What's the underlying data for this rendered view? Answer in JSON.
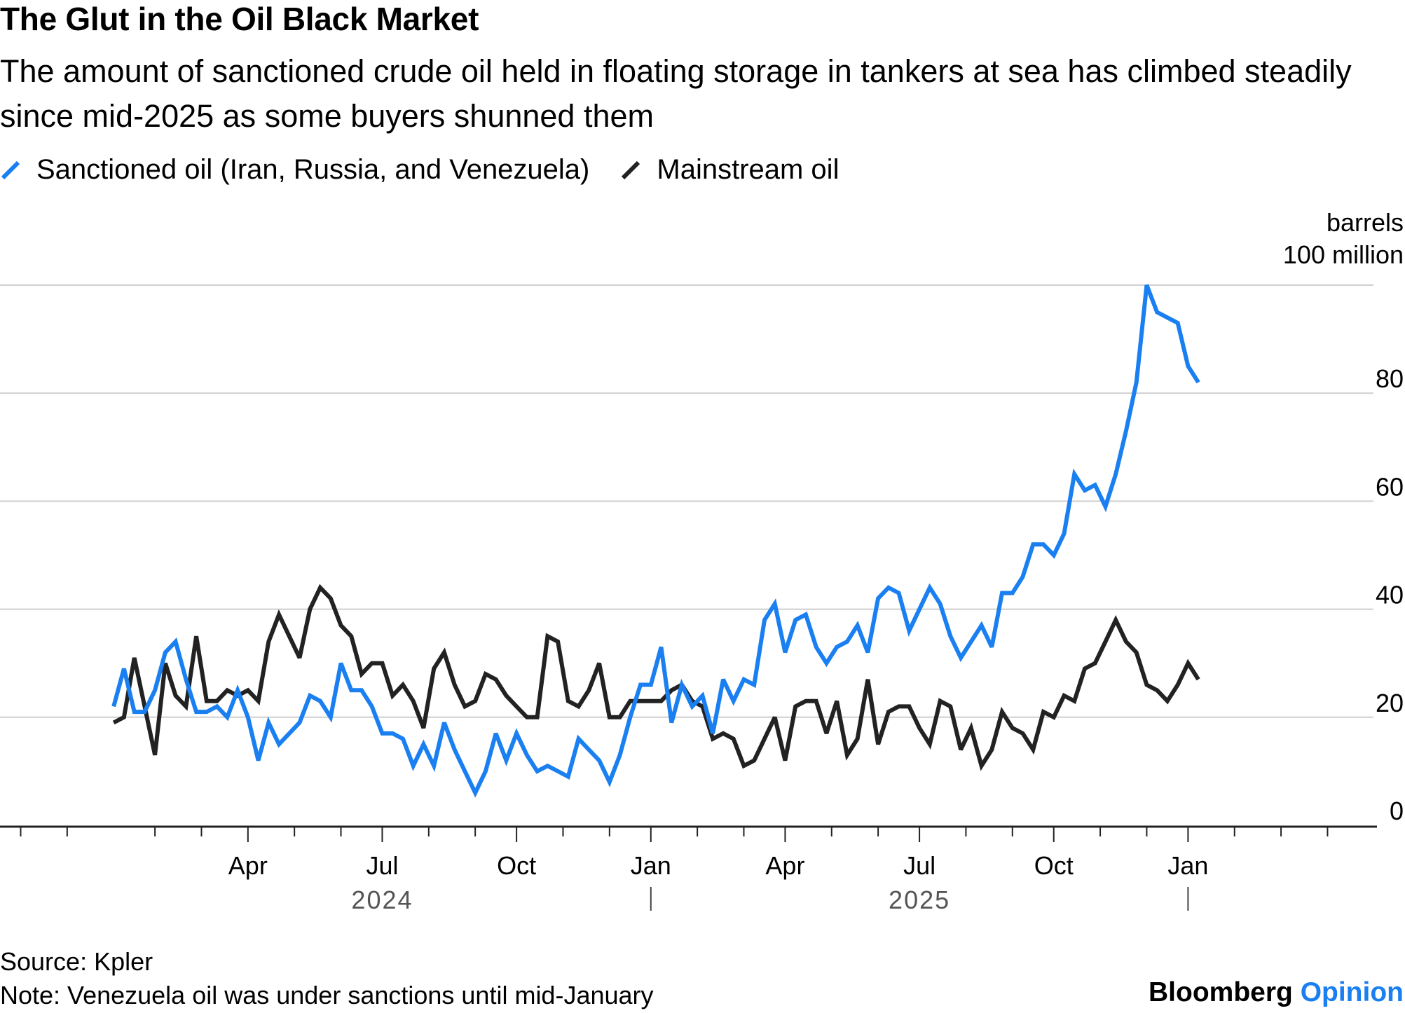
{
  "header": {
    "title": "The Glut in the Oil Black Market",
    "subtitle": "The amount of sanctioned crude oil held in floating storage in tankers at sea has climbed steadily since mid-2025 as some buyers shunned them"
  },
  "legend": [
    {
      "label": "Sanctioned oil (Iran, Russia, and Venezuela)",
      "color": "#1a7ff0"
    },
    {
      "label": "Mainstream oil",
      "color": "#222222"
    }
  ],
  "chart_data": {
    "type": "line",
    "title": "The Glut in the Oil Black Market",
    "ylabel_line1": "barrels",
    "ylabel_line2": "100 million",
    "ylim": [
      0,
      100
    ],
    "yticks": [
      0,
      20,
      40,
      60,
      80
    ],
    "grid": true,
    "legend_position": "top-left",
    "x_unit": "weeks since start of 2024 (approx.)",
    "xlim": [
      -11,
      125
    ],
    "month_ticks": [
      {
        "label": "Apr",
        "x": 13
      },
      {
        "label": "Jul",
        "x": 26
      },
      {
        "label": "Oct",
        "x": 39
      },
      {
        "label": "Jan",
        "x": 52
      },
      {
        "label": "Apr",
        "x": 65
      },
      {
        "label": "Jul",
        "x": 78
      },
      {
        "label": "Oct",
        "x": 91
      },
      {
        "label": "Jan",
        "x": 104
      }
    ],
    "minor_ticks": [
      -9,
      -4.5,
      4,
      8.5,
      17.5,
      22,
      30.5,
      35,
      43.5,
      48,
      56.5,
      61,
      69.5,
      74,
      82.5,
      87,
      95.5,
      100,
      108.5,
      113,
      117.5
    ],
    "year_labels": [
      {
        "label": "2024",
        "x": 26
      },
      {
        "label": "2025",
        "x": 78
      }
    ],
    "year_dividers": [
      52,
      104
    ],
    "series": [
      {
        "name": "Sanctioned oil (Iran, Russia, and Venezuela)",
        "color": "#1a7ff0",
        "x_start": 0,
        "x_step": 1,
        "values": [
          22,
          29,
          21,
          21,
          25,
          32,
          34,
          27,
          21,
          21,
          22,
          20,
          25,
          20,
          12,
          19,
          15,
          17,
          19,
          24,
          23,
          20,
          30,
          25,
          25,
          22,
          17,
          17,
          16,
          11,
          15,
          11,
          19,
          14,
          10,
          6,
          10,
          17,
          12,
          17,
          13,
          10,
          11,
          10,
          9,
          16,
          14,
          12,
          8,
          13,
          20,
          26,
          26,
          33,
          19,
          26,
          22,
          24,
          17,
          27,
          23,
          27,
          26,
          38,
          41,
          32,
          38,
          39,
          33,
          30,
          33,
          34,
          37,
          32,
          42,
          44,
          43,
          36,
          40,
          44,
          41,
          35,
          31,
          34,
          37,
          33,
          43,
          43,
          46,
          52,
          52,
          50,
          54,
          65,
          62,
          63,
          59,
          65,
          73,
          82,
          100,
          95,
          94,
          93,
          85,
          82
        ]
      },
      {
        "name": "Mainstream oil",
        "color": "#222222",
        "x_start": 0,
        "x_step": 1,
        "values": [
          19,
          20,
          31,
          22,
          13,
          30,
          24,
          22,
          35,
          23,
          23,
          25,
          24,
          25,
          23,
          34,
          39,
          35,
          31,
          40,
          44,
          42,
          37,
          35,
          28,
          30,
          30,
          24,
          26,
          23,
          18,
          29,
          32,
          26,
          22,
          23,
          28,
          27,
          24,
          22,
          20,
          20,
          35,
          34,
          23,
          22,
          25,
          30,
          20,
          20,
          23,
          23,
          23,
          23,
          25,
          26,
          23,
          22,
          16,
          17,
          16,
          11,
          12,
          16,
          20,
          12,
          22,
          23,
          23,
          17,
          23,
          13,
          16,
          27,
          15,
          21,
          22,
          22,
          18,
          15,
          23,
          22,
          14,
          18,
          11,
          14,
          21,
          18,
          17,
          14,
          21,
          20,
          24,
          23,
          29,
          30,
          34,
          38,
          34,
          32,
          26,
          25,
          23,
          26,
          30,
          27
        ]
      }
    ]
  },
  "footer": {
    "source": "Source: Kpler",
    "note": "Note: Venezuela oil was under sanctions until mid-January",
    "brand_main": "Bloomberg",
    "brand_accent": "Opinion"
  }
}
